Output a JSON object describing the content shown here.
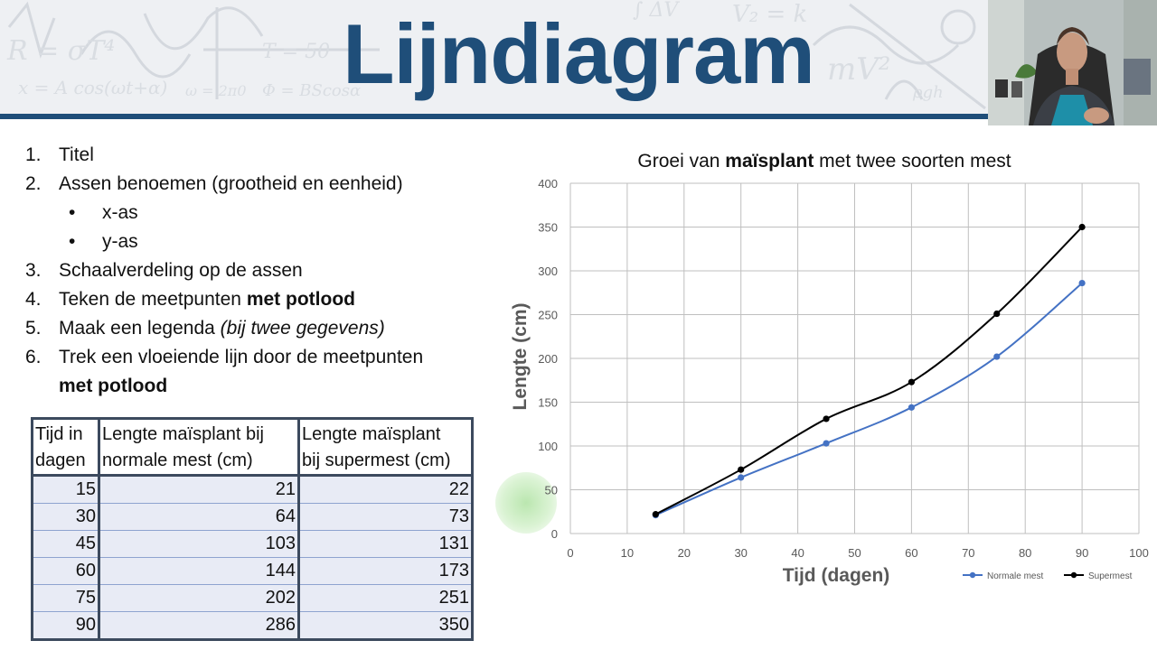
{
  "slide": {
    "title": "Lijndiagram",
    "steps": [
      {
        "num": "1.",
        "text": "Titel"
      },
      {
        "num": "2.",
        "text": "Assen benoemen (grootheid en eenheid)"
      },
      {
        "num": "3.",
        "text": "Schaalverdeling op de assen"
      },
      {
        "num": "4.",
        "text": "Teken de meetpunten ",
        "bold": "met potlood"
      },
      {
        "num": "5.",
        "text": "Maak een legenda ",
        "italic": "(bij twee gegevens)"
      },
      {
        "num": "6.",
        "text": "Trek een vloeiende lijn door de meetpunten",
        "cont_bold": "met potlood"
      }
    ],
    "substeps": [
      "x-as",
      "y-as"
    ],
    "bullet": "•"
  },
  "table": {
    "headers": [
      "Tijd in dagen",
      "Lengte maïsplant bij normale mest (cm)",
      "Lengte maïsplant bij supermest (cm)"
    ],
    "header_lines": [
      [
        "Tijd in",
        "dagen"
      ],
      [
        "Lengte maïsplant bij",
        "normale mest (cm)"
      ],
      [
        "Lengte maïsplant",
        "bij supermest (cm)"
      ]
    ],
    "rows": [
      [
        "15",
        "21",
        "22"
      ],
      [
        "30",
        "64",
        "73"
      ],
      [
        "45",
        "103",
        "131"
      ],
      [
        "60",
        "144",
        "173"
      ],
      [
        "75",
        "202",
        "251"
      ],
      [
        "90",
        "286",
        "350"
      ]
    ]
  },
  "chart_data": {
    "type": "line",
    "title_parts": [
      "Groei van ",
      "maïsplant",
      " met twee soorten mest"
    ],
    "xlabel": "Tijd (dagen)",
    "ylabel": "Lengte (cm)",
    "xlim": [
      0,
      100
    ],
    "ylim": [
      0,
      400
    ],
    "xticks": [
      0,
      10,
      20,
      30,
      40,
      50,
      60,
      70,
      80,
      90,
      100
    ],
    "yticks": [
      0,
      50,
      100,
      150,
      200,
      250,
      300,
      350,
      400
    ],
    "grid": true,
    "legend_position": "bottom-right",
    "x": [
      15,
      30,
      45,
      60,
      75,
      90
    ],
    "series": [
      {
        "name": "Normale mest",
        "values": [
          21,
          64,
          103,
          144,
          202,
          286
        ],
        "color": "#4472c4"
      },
      {
        "name": "Supermest",
        "values": [
          22,
          73,
          131,
          173,
          251,
          350
        ],
        "color": "#000000"
      }
    ]
  },
  "colors": {
    "title": "#1f4e79",
    "bar": "#1f4e79",
    "axis_label": "#595959",
    "grid": "#bfbfbf"
  }
}
